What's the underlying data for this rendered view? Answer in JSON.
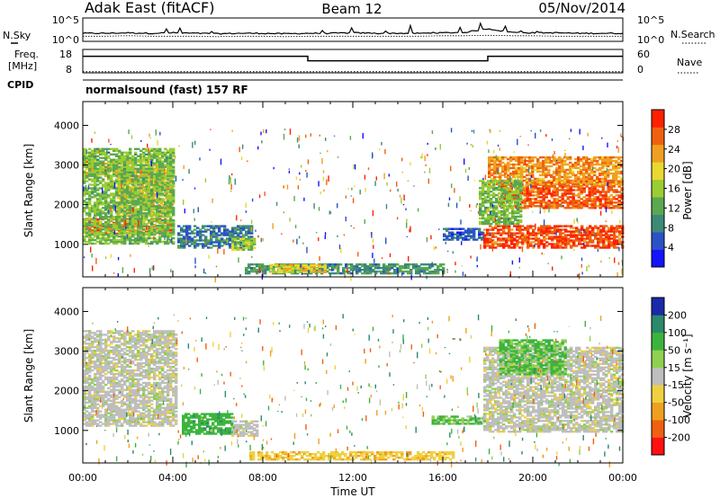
{
  "header": {
    "station": "Adak East (fitACF)",
    "beam": "Beam 12",
    "date": "05/Nov/2014"
  },
  "strip": {
    "nsky_label": "N.Sky",
    "nsearch_label": "N.Search",
    "noise_ticks_left": [
      "10^5",
      "10^0"
    ],
    "noise_ticks_right": [
      "10^5",
      "10^0"
    ],
    "freq_label": "Freq.",
    "freq_unit": "[MHz]",
    "freq_ticks": [
      "18",
      "8"
    ],
    "nave_label": "Nave",
    "nave_ticks": [
      "60",
      "0"
    ],
    "cpid_label": "CPID",
    "cpid_value": "normalsound (fast) 157 RF"
  },
  "axes": {
    "x_ticks": [
      "00:00",
      "04:00",
      "08:00",
      "12:00",
      "16:00",
      "20:00",
      "00:00"
    ],
    "x_label": "Time UT",
    "y_ticks": [
      "1000",
      "2000",
      "3000",
      "4000"
    ],
    "y_label": "Slant Range [km]"
  },
  "colorbars": {
    "power": {
      "label": "Power [dB]",
      "ticks": [
        "4",
        "8",
        "12",
        "16",
        "20",
        "24",
        "28"
      ],
      "colors": [
        "#1414ff",
        "#2a52c8",
        "#3c8a78",
        "#5aa850",
        "#9acd32",
        "#e8d830",
        "#f0a020",
        "#f06010",
        "#ff2000"
      ]
    },
    "velocity": {
      "label": "Velocity [m s⁻¹]",
      "ticks": [
        "200",
        "100",
        "50",
        "15",
        "-15",
        "-50",
        "-100",
        "-200"
      ],
      "colors": [
        "#1a2aa8",
        "#2a8a6a",
        "#3cb43c",
        "#90d050",
        "#bebebe",
        "#f0d040",
        "#f0a020",
        "#f06010",
        "#ff1010"
      ]
    }
  },
  "chart_data": [
    {
      "type": "line",
      "name": "noise strip",
      "x_range_hours": [
        0,
        24
      ],
      "series": [
        {
          "name": "N.Sky",
          "values_log10": [
            1.6,
            1.6,
            1.7,
            1.6,
            1.7,
            1.6,
            1.5,
            1.6,
            1.6,
            1.5,
            1.6,
            1.6,
            1.7,
            1.6,
            1.6,
            1.6,
            1.7,
            1.8,
            2.6,
            1.8,
            1.7,
            1.7,
            1.6,
            1.6,
            1.6
          ]
        },
        {
          "name": "N.Search",
          "values_log10": [
            1.1,
            1.1,
            1.2,
            1.1,
            1.1,
            1.1,
            1.0,
            1.1,
            1.1,
            1.0,
            1.1,
            1.1,
            1.1,
            1.1,
            1.1,
            1.1,
            1.2,
            1.2,
            1.3,
            1.2,
            1.2,
            1.1,
            1.1,
            1.1,
            1.1
          ]
        }
      ],
      "ylim_log10": [
        0,
        5
      ]
    },
    {
      "type": "line",
      "name": "frequency strip",
      "series": [
        {
          "name": "Freq.",
          "x_hours": [
            0,
            10,
            10,
            18,
            18,
            24
          ],
          "values": [
            14.5,
            14.5,
            12.2,
            12.2,
            14.5,
            14.5
          ]
        },
        {
          "name": "Nave",
          "x_hours": [
            0,
            24
          ],
          "values": [
            3,
            3
          ]
        }
      ],
      "freq_ylim": [
        6,
        18
      ],
      "nave_ylim": [
        0,
        60
      ]
    },
    {
      "type": "heatmap",
      "name": "power",
      "x_range_hours": [
        0,
        24
      ],
      "y_range_km": [
        180,
        4600
      ],
      "regions": [
        {
          "t0": 0.0,
          "t1": 3.9,
          "r0": 1250,
          "r1": 1650,
          "value": 26
        },
        {
          "t0": 0.0,
          "t1": 3.6,
          "r0": 2700,
          "r1": 3100,
          "value": 22
        },
        {
          "t0": 1.5,
          "t1": 4.0,
          "r0": 1700,
          "r1": 2900,
          "value": 22
        },
        {
          "t0": 0.0,
          "t1": 4.0,
          "r0": 1000,
          "r1": 3400,
          "value": 14
        },
        {
          "t0": 4.2,
          "t1": 7.5,
          "r0": 900,
          "r1": 1450,
          "value": 8
        },
        {
          "t0": 6.6,
          "t1": 7.6,
          "r0": 850,
          "r1": 1150,
          "value": 16
        },
        {
          "t0": 7.2,
          "t1": 16.0,
          "r0": 250,
          "r1": 500,
          "value": 10
        },
        {
          "t0": 8.3,
          "t1": 10.8,
          "r0": 280,
          "r1": 500,
          "value": 20
        },
        {
          "t0": 16.0,
          "t1": 17.8,
          "r0": 1100,
          "r1": 1400,
          "value": 6
        },
        {
          "t0": 17.8,
          "t1": 24.0,
          "r0": 900,
          "r1": 1450,
          "value": 28
        },
        {
          "t0": 18.5,
          "t1": 24.0,
          "r0": 1900,
          "r1": 2600,
          "value": 27
        },
        {
          "t0": 18.0,
          "t1": 24.0,
          "r0": 2500,
          "r1": 3200,
          "value": 24
        },
        {
          "t0": 17.6,
          "t1": 19.5,
          "r0": 1500,
          "r1": 2600,
          "value": 14
        }
      ]
    },
    {
      "type": "heatmap",
      "name": "velocity",
      "x_range_hours": [
        0,
        24
      ],
      "y_range_km": [
        180,
        4600
      ],
      "regions": [
        {
          "t0": 0.0,
          "t1": 4.1,
          "r0": 1100,
          "r1": 3500,
          "value": 0
        },
        {
          "t0": 4.4,
          "t1": 6.6,
          "r0": 900,
          "r1": 1400,
          "value": 60
        },
        {
          "t0": 6.6,
          "t1": 7.8,
          "r0": 850,
          "r1": 1250,
          "value": 0
        },
        {
          "t0": 7.4,
          "t1": 16.5,
          "r0": 250,
          "r1": 450,
          "value": -40
        },
        {
          "t0": 15.5,
          "t1": 17.8,
          "r0": 1150,
          "r1": 1350,
          "value": 30
        },
        {
          "t0": 17.8,
          "t1": 24.0,
          "r0": 950,
          "r1": 3100,
          "value": 0
        },
        {
          "t0": 18.5,
          "t1": 21.5,
          "r0": 2400,
          "r1": 3300,
          "value": 35
        }
      ]
    }
  ]
}
